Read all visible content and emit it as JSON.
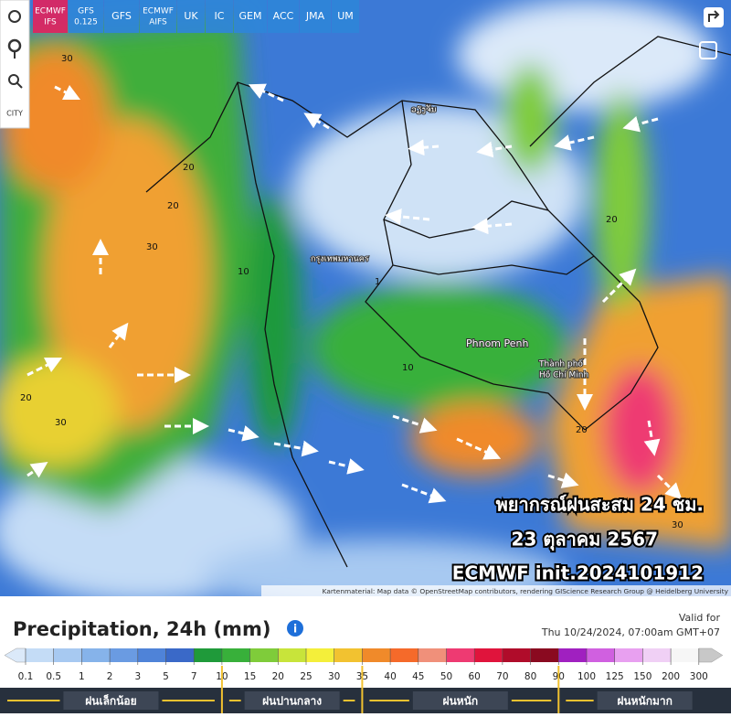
{
  "sidebar": {
    "city": "CITY"
  },
  "model_tabs": [
    [
      "ECMWF",
      "IFS"
    ],
    [
      "GFS",
      "0.125"
    ],
    [
      "GFS"
    ],
    [
      "ECMWF",
      "AIFS"
    ],
    [
      "UK"
    ],
    [
      "IC"
    ],
    [
      "GEM"
    ],
    [
      "ACC"
    ],
    [
      "JMA"
    ],
    [
      "UM"
    ]
  ],
  "map": {
    "labels": [
      "30",
      "20",
      "30",
      "10",
      "20",
      "30",
      "20",
      "10",
      "20",
      "30",
      "1",
      "20"
    ],
    "cities": [
      [
        "ວຽງຈັນ"
      ],
      [
        "กรุงเทพมหานคร"
      ],
      [
        "Phnom Penh"
      ],
      [
        "Thành phố",
        "Hồ Chí Minh"
      ]
    ],
    "overlay": [
      "พยากรณ์ฝนสะสม 24 ชม.",
      "23 ตุลาคม 2567",
      "ECMWF init.2024101912"
    ],
    "attribution": "Kartenmaterial: Map data © OpenStreetMap contributors, rendering GIScience Research Group @ Heidelberg University"
  },
  "panel": {
    "title": "Precipitation, 24h (mm)",
    "valid_label": "Valid for",
    "valid_time": "Thu 10/24/2024, 07:00am GMT+07",
    "scale": {
      "values": [
        0.1,
        0.5,
        1,
        2,
        3,
        5,
        7,
        10,
        15,
        20,
        25,
        30,
        35,
        40,
        45,
        50,
        60,
        70,
        80,
        90,
        100,
        125,
        150,
        200,
        300
      ],
      "colors": [
        "#dbe9f9",
        "#c4dcf6",
        "#a7c9f1",
        "#86b3ea",
        "#6a9be2",
        "#4f83d8",
        "#3a69c8",
        "#1f9a3a",
        "#38b03a",
        "#7fcc3a",
        "#c8e43a",
        "#f4ef3a",
        "#f2c230",
        "#f08a2a",
        "#f56a2a",
        "#f0907a",
        "#ee3a72",
        "#e0143c",
        "#b00c2a",
        "#8a0a20",
        "#a020c0",
        "#d060e0",
        "#e8a0f0",
        "#f0d0f5",
        "#f6f6f6",
        "#c8c8c8"
      ]
    },
    "categories": [
      "ฝนเล็กน้อย",
      "ฝนปานกลาง",
      "ฝนหนัก",
      "ฝนหนักมาก"
    ]
  }
}
